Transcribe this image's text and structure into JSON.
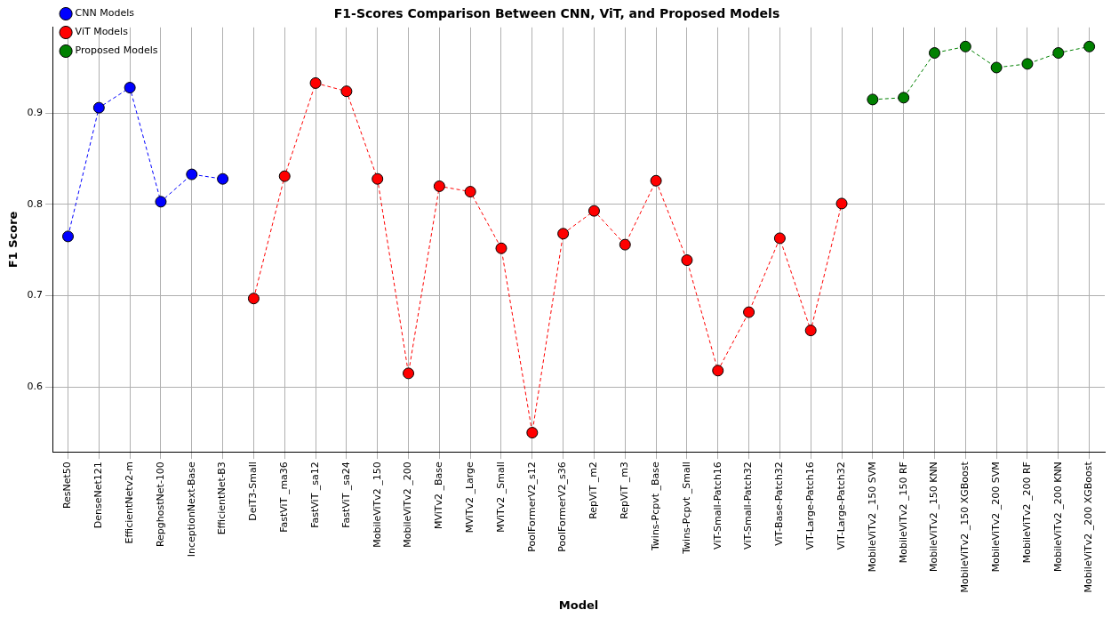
{
  "chart_data": {
    "type": "line",
    "title": "F1-Scores Comparison Between CNN, ViT, and Proposed Models",
    "xlabel": "Model",
    "ylabel": "F1 Score",
    "categories": [
      "ResNet50",
      "DenseNet121",
      "EfficientNetv2-m",
      "RepghostNet-100",
      "InceptionNext-Base",
      "EfficientNet-B3",
      "DeiT3-Small",
      "FastViT _ma36",
      "FastViT _sa12",
      "FastViT _sa24",
      "MobileViTv2 _150",
      "MobileViTv2 _200",
      "MViTv2 _Base",
      "MViTv2 _Large",
      "MViTv2 _Small",
      "PoolFormerV2_s12",
      "PoolFormerV2_s36",
      "RepViT _m2",
      "RepViT _m3",
      "Twins-Pcpvt _Base",
      "Twins-Pcpvt _Small",
      "ViT-Small-Patch16",
      "ViT-Small-Patch32",
      "ViT-Base-Patch32",
      "ViT-Large-Patch16",
      "ViT-Large-Patch32",
      "MobileViTv2 _150 SVM",
      "MobileViTv2 _150 RF",
      "MobileViTv2 _150 KNN",
      "MobileViTv2 _150 XGBoost",
      "MobileViTv2 _200 SVM",
      "MobileViTv2 _200 RF",
      "MobileViTv2 _200 KNN",
      "MobileViTv2 _200 XGBoost"
    ],
    "series": [
      {
        "name": "CNN Models",
        "color": "#0000ff",
        "values": [
          0.765,
          0.906,
          0.928,
          0.803,
          0.833,
          0.828,
          null,
          null,
          null,
          null,
          null,
          null,
          null,
          null,
          null,
          null,
          null,
          null,
          null,
          null,
          null,
          null,
          null,
          null,
          null,
          null,
          null,
          null,
          null,
          null,
          null,
          null,
          null,
          null
        ]
      },
      {
        "name": "ViT Models",
        "color": "#ff0000",
        "values": [
          null,
          null,
          null,
          null,
          null,
          null,
          0.697,
          0.831,
          0.933,
          0.924,
          0.828,
          0.615,
          0.82,
          0.814,
          0.752,
          0.55,
          0.768,
          0.793,
          0.756,
          0.826,
          0.739,
          0.618,
          0.682,
          0.763,
          0.662,
          0.801,
          null,
          null,
          null,
          null,
          null,
          null,
          null,
          null
        ]
      },
      {
        "name": "Proposed Models",
        "color": "#008000",
        "values": [
          null,
          null,
          null,
          null,
          null,
          null,
          null,
          null,
          null,
          null,
          null,
          null,
          null,
          null,
          null,
          null,
          null,
          null,
          null,
          null,
          null,
          null,
          null,
          null,
          null,
          null,
          0.915,
          0.917,
          0.966,
          0.973,
          0.95,
          0.954,
          0.966,
          0.973
        ]
      }
    ],
    "ylim": [
      0.529,
      0.994
    ],
    "yticks": [
      0.6,
      0.7,
      0.8,
      0.9
    ],
    "grid": true,
    "legend": "top left",
    "marker": "circle",
    "line_style": "dashed"
  }
}
